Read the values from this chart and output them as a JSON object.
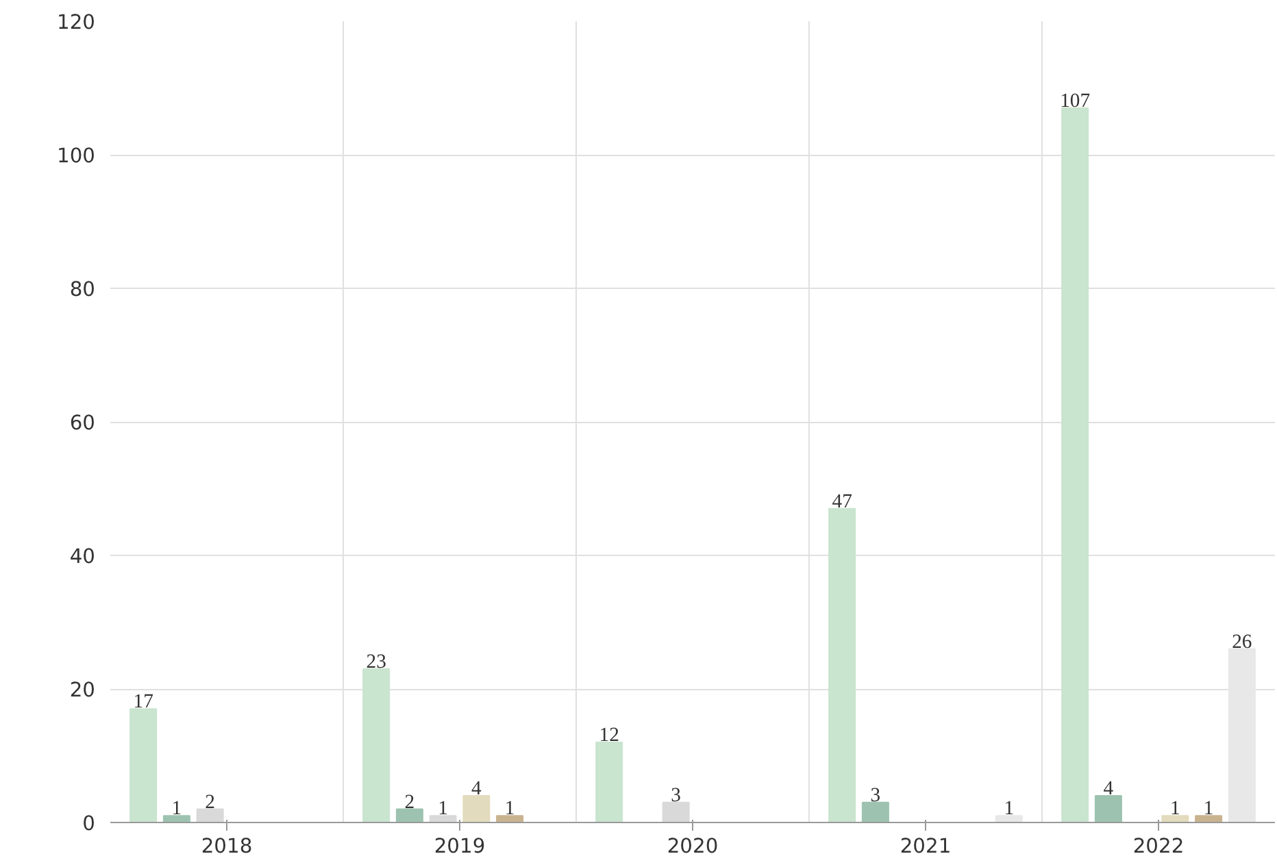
{
  "chart_data": {
    "type": "bar",
    "categories": [
      "2018",
      "2019",
      "2020",
      "2021",
      "2022"
    ],
    "series": [
      {
        "color": "#c9e4cf",
        "values": [
          17,
          23,
          12,
          47,
          107
        ]
      },
      {
        "color": "#9dc3b0",
        "values": [
          1,
          2,
          null,
          3,
          4
        ]
      },
      {
        "color": "#d9d9d9",
        "values": [
          2,
          1,
          3,
          null,
          null
        ]
      },
      {
        "color": "#e3dbbd",
        "values": [
          null,
          4,
          null,
          null,
          1
        ]
      },
      {
        "color": "#c9b38f",
        "values": [
          null,
          1,
          null,
          null,
          1
        ]
      },
      {
        "color": "#e8e8e8",
        "values": [
          null,
          null,
          null,
          1,
          26
        ]
      }
    ],
    "ylim": [
      0,
      120
    ],
    "yticks": [
      0,
      20,
      40,
      60,
      80,
      100,
      120
    ],
    "grid": true,
    "data_labels": true
  }
}
